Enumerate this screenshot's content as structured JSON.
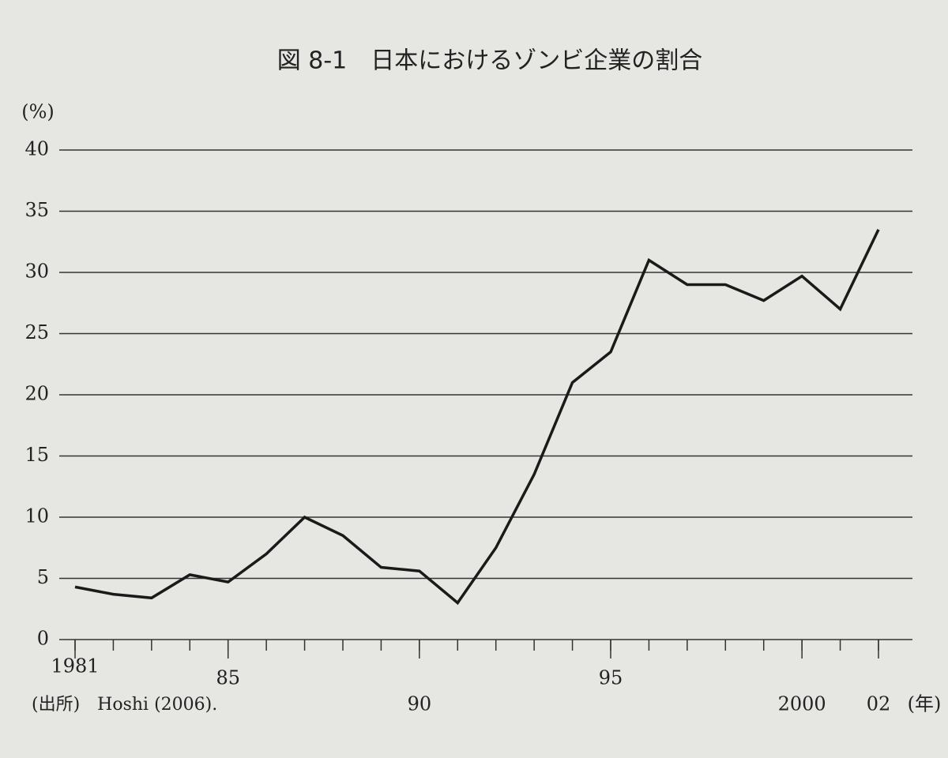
{
  "chart_data": {
    "type": "line",
    "title": "図 8-1　日本におけるゾンビ企業の割合",
    "y_label": "(%)",
    "x_label": "(年)",
    "source": "(出所)　Hoshi (2006).",
    "x": [
      1981,
      1982,
      1983,
      1984,
      1985,
      1986,
      1987,
      1988,
      1989,
      1990,
      1991,
      1992,
      1993,
      1994,
      1995,
      1996,
      1997,
      1998,
      1999,
      2000,
      2001,
      2002
    ],
    "values": [
      4.3,
      3.7,
      3.4,
      5.3,
      4.7,
      7.0,
      10.0,
      8.5,
      5.9,
      5.6,
      3.0,
      7.5,
      13.5,
      21.0,
      23.5,
      31.0,
      29.0,
      29.0,
      27.7,
      29.7,
      27.0,
      33.5
    ],
    "color": "#1a1a1a",
    "xlim": [
      1981,
      2002
    ],
    "xticks": [
      {
        "value": 1981,
        "label": "1981"
      },
      {
        "value": 1985,
        "label": "85"
      },
      {
        "value": 1990,
        "label": "90"
      },
      {
        "value": 1995,
        "label": "95"
      },
      {
        "value": 2000,
        "label": "2000"
      },
      {
        "value": 2002,
        "label": "02"
      }
    ],
    "ylim": [
      0,
      40
    ],
    "yticks": [
      0,
      5,
      10,
      15,
      20,
      25,
      30,
      35,
      40
    ],
    "grid": true
  }
}
